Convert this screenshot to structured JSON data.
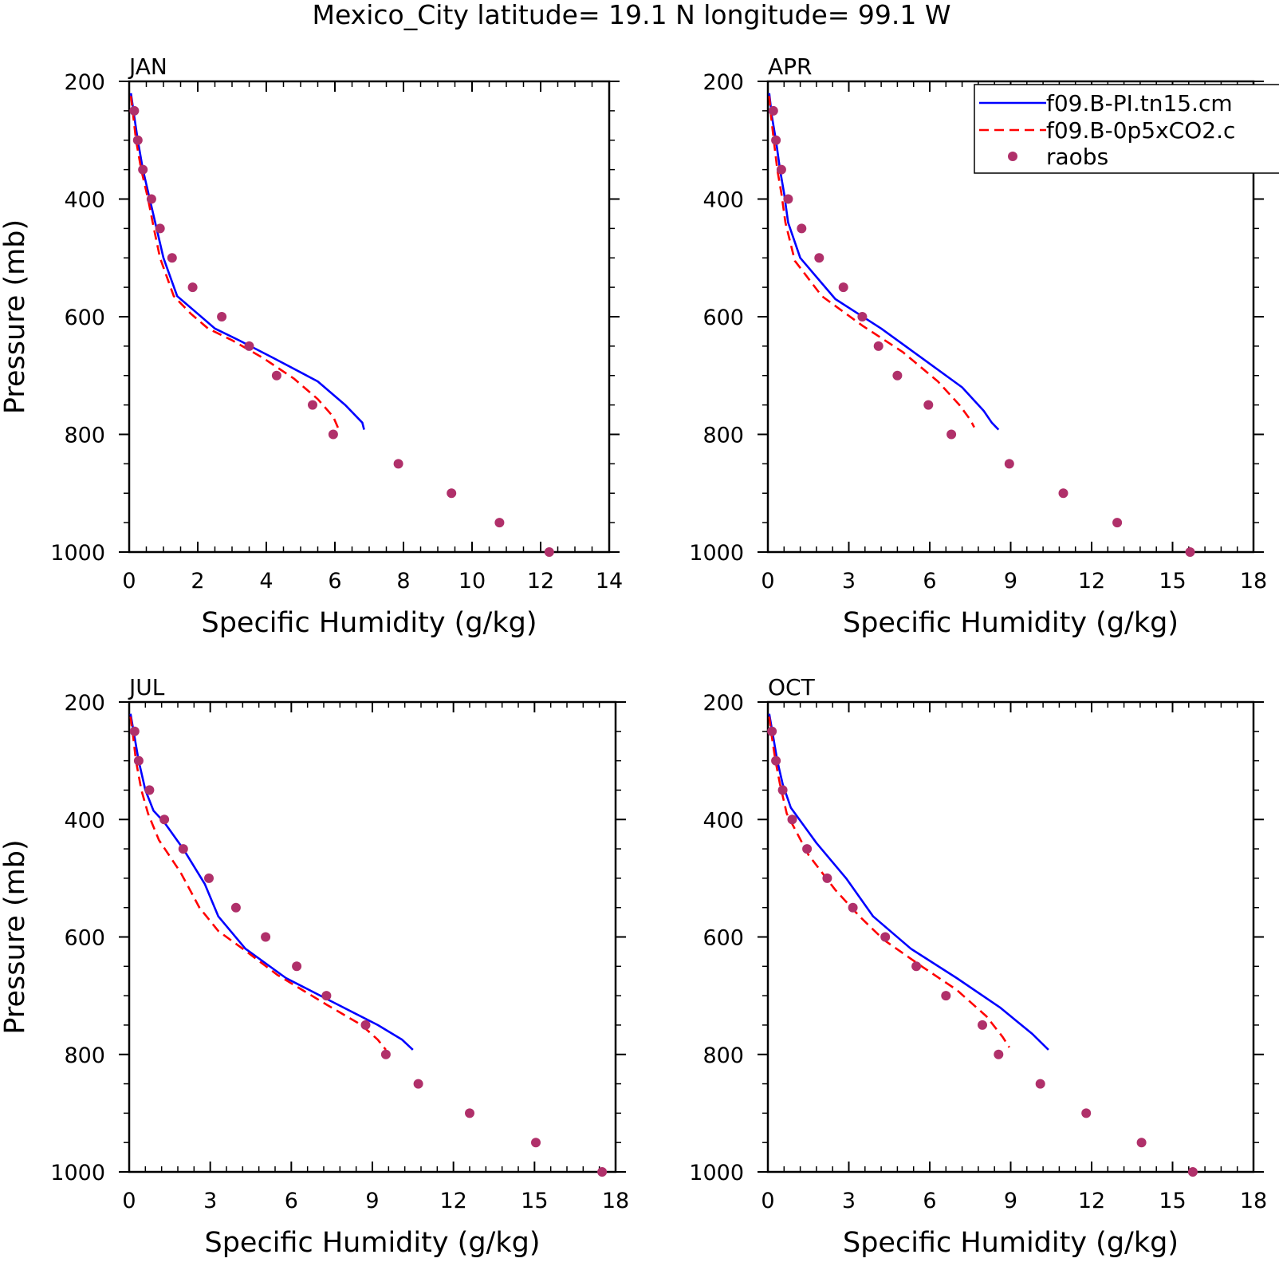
{
  "figure": {
    "title": "Mexico_City  latitude= 19.1 N longitude= 99.1 W",
    "legend_entries": [
      "f09.B-PI.tn15.cm",
      "f09.B-0p5xCO2.c",
      "raobs"
    ],
    "legend_full_names": [
      "f09.B-PI.tn15.cm",
      "f09.B-0p5xCO2.c",
      "raobs"
    ]
  },
  "colors": {
    "series_pi": "#0000ff",
    "series_co2": "#ff0000",
    "raobs": "#b0306a"
  },
  "chart_data": [
    {
      "type": "line",
      "panel": "JAN",
      "xlabel": "Specific Humidity (g/kg)",
      "ylabel": "Pressure (mb)",
      "xlim": [
        0,
        14
      ],
      "ylim": [
        200,
        1000
      ],
      "y_inverted": true,
      "xticks": [
        0,
        2,
        4,
        6,
        8,
        10,
        12,
        14
      ],
      "yticks": [
        200,
        400,
        600,
        800,
        1000
      ],
      "series": [
        {
          "name": "f09.B-PI.tn15.cm",
          "style": "solid",
          "points": [
            [
              0.05,
              220
            ],
            [
              0.15,
              260
            ],
            [
              0.25,
              300
            ],
            [
              0.4,
              350
            ],
            [
              0.6,
              400
            ],
            [
              0.8,
              450
            ],
            [
              1.0,
              500
            ],
            [
              1.4,
              565
            ],
            [
              2.0,
              595
            ],
            [
              2.5,
              620
            ],
            [
              3.2,
              640
            ],
            [
              4.2,
              670
            ],
            [
              5.5,
              710
            ],
            [
              6.3,
              750
            ],
            [
              6.8,
              780
            ],
            [
              6.85,
              792
            ]
          ]
        },
        {
          "name": "f09.B-0p5xCO2.c",
          "style": "dashed",
          "points": [
            [
              0.05,
              225
            ],
            [
              0.12,
              260
            ],
            [
              0.2,
              300
            ],
            [
              0.35,
              350
            ],
            [
              0.55,
              400
            ],
            [
              0.72,
              450
            ],
            [
              0.9,
              500
            ],
            [
              1.3,
              565
            ],
            [
              1.8,
              595
            ],
            [
              2.3,
              620
            ],
            [
              3.0,
              640
            ],
            [
              3.9,
              670
            ],
            [
              4.8,
              705
            ],
            [
              5.5,
              740
            ],
            [
              5.95,
              770
            ],
            [
              6.1,
              790
            ]
          ]
        }
      ],
      "raobs": [
        [
          0.15,
          250
        ],
        [
          0.25,
          300
        ],
        [
          0.4,
          350
        ],
        [
          0.65,
          400
        ],
        [
          0.9,
          450
        ],
        [
          1.25,
          500
        ],
        [
          1.85,
          550
        ],
        [
          2.7,
          600
        ],
        [
          3.5,
          650
        ],
        [
          4.3,
          700
        ],
        [
          5.35,
          750
        ],
        [
          5.95,
          800
        ],
        [
          7.85,
          850
        ],
        [
          9.4,
          900
        ],
        [
          10.8,
          950
        ],
        [
          12.25,
          1000
        ]
      ]
    },
    {
      "type": "line",
      "panel": "APR",
      "xlabel": "Specific Humidity (g/kg)",
      "ylabel": "",
      "xlim": [
        0,
        18
      ],
      "ylim": [
        200,
        1000
      ],
      "y_inverted": true,
      "xticks": [
        0,
        3,
        6,
        9,
        12,
        15,
        18
      ],
      "yticks": [
        200,
        400,
        600,
        800,
        1000
      ],
      "series": [
        {
          "name": "f09.B-PI.tn15.cm",
          "style": "solid",
          "points": [
            [
              0.05,
              220
            ],
            [
              0.15,
              260
            ],
            [
              0.3,
              300
            ],
            [
              0.45,
              350
            ],
            [
              0.6,
              390
            ],
            [
              0.75,
              440
            ],
            [
              1.2,
              500
            ],
            [
              2.5,
              570
            ],
            [
              4.2,
              620
            ],
            [
              5.7,
              670
            ],
            [
              7.2,
              720
            ],
            [
              8.0,
              760
            ],
            [
              8.3,
              780
            ],
            [
              8.55,
              792
            ]
          ]
        },
        {
          "name": "f09.B-0p5xCO2.c",
          "style": "dashed",
          "points": [
            [
              0.05,
              225
            ],
            [
              0.12,
              260
            ],
            [
              0.22,
              300
            ],
            [
              0.35,
              350
            ],
            [
              0.5,
              390
            ],
            [
              0.65,
              440
            ],
            [
              1.0,
              505
            ],
            [
              2.0,
              565
            ],
            [
              3.5,
              615
            ],
            [
              5.0,
              660
            ],
            [
              6.3,
              710
            ],
            [
              7.1,
              750
            ],
            [
              7.5,
              775
            ],
            [
              7.65,
              788
            ]
          ]
        }
      ],
      "raobs": [
        [
          0.2,
          250
        ],
        [
          0.3,
          300
        ],
        [
          0.5,
          350
        ],
        [
          0.75,
          400
        ],
        [
          1.25,
          450
        ],
        [
          1.9,
          500
        ],
        [
          2.8,
          550
        ],
        [
          3.5,
          600
        ],
        [
          4.1,
          650
        ],
        [
          4.8,
          700
        ],
        [
          5.95,
          750
        ],
        [
          6.8,
          800
        ],
        [
          8.95,
          850
        ],
        [
          10.95,
          900
        ],
        [
          12.95,
          950
        ],
        [
          15.65,
          1000
        ]
      ]
    },
    {
      "type": "line",
      "panel": "JUL",
      "xlabel": "Specific Humidity (g/kg)",
      "ylabel": "Pressure (mb)",
      "xlim": [
        0,
        18
      ],
      "ylim": [
        200,
        1000
      ],
      "y_inverted": true,
      "xticks": [
        0,
        3,
        6,
        9,
        12,
        15,
        18
      ],
      "yticks": [
        200,
        400,
        600,
        800,
        1000
      ],
      "series": [
        {
          "name": "f09.B-PI.tn15.cm",
          "style": "solid",
          "points": [
            [
              0.05,
              220
            ],
            [
              0.2,
              260
            ],
            [
              0.35,
              300
            ],
            [
              0.6,
              350
            ],
            [
              0.9,
              385
            ],
            [
              1.3,
              405
            ],
            [
              2.0,
              450
            ],
            [
              2.8,
              510
            ],
            [
              3.3,
              565
            ],
            [
              4.3,
              620
            ],
            [
              5.8,
              670
            ],
            [
              7.5,
              710
            ],
            [
              9.2,
              750
            ],
            [
              10.1,
              775
            ],
            [
              10.5,
              792
            ]
          ]
        },
        {
          "name": "f09.B-0p5xCO2.c",
          "style": "dashed",
          "points": [
            [
              0.05,
              225
            ],
            [
              0.15,
              260
            ],
            [
              0.25,
              300
            ],
            [
              0.45,
              350
            ],
            [
              0.7,
              390
            ],
            [
              1.1,
              435
            ],
            [
              1.9,
              490
            ],
            [
              2.6,
              550
            ],
            [
              3.3,
              590
            ],
            [
              4.2,
              620
            ],
            [
              5.5,
              665
            ],
            [
              7.3,
              715
            ],
            [
              8.6,
              750
            ],
            [
              9.2,
              775
            ],
            [
              9.5,
              792
            ]
          ]
        }
      ],
      "raobs": [
        [
          0.2,
          250
        ],
        [
          0.35,
          300
        ],
        [
          0.75,
          350
        ],
        [
          1.3,
          400
        ],
        [
          2.0,
          450
        ],
        [
          2.95,
          500
        ],
        [
          3.95,
          550
        ],
        [
          5.05,
          600
        ],
        [
          6.2,
          650
        ],
        [
          7.3,
          700
        ],
        [
          8.75,
          750
        ],
        [
          9.5,
          800
        ],
        [
          10.7,
          850
        ],
        [
          12.6,
          900
        ],
        [
          15.05,
          950
        ],
        [
          17.5,
          1000
        ]
      ]
    },
    {
      "type": "line",
      "panel": "OCT",
      "xlabel": "Specific Humidity (g/kg)",
      "ylabel": "",
      "xlim": [
        0,
        18
      ],
      "ylim": [
        200,
        1000
      ],
      "y_inverted": true,
      "xticks": [
        0,
        3,
        6,
        9,
        12,
        15,
        18
      ],
      "yticks": [
        200,
        400,
        600,
        800,
        1000
      ],
      "series": [
        {
          "name": "f09.B-PI.tn15.cm",
          "style": "solid",
          "points": [
            [
              0.05,
              220
            ],
            [
              0.2,
              260
            ],
            [
              0.35,
              300
            ],
            [
              0.55,
              340
            ],
            [
              0.85,
              380
            ],
            [
              1.8,
              440
            ],
            [
              2.9,
              500
            ],
            [
              3.9,
              565
            ],
            [
              5.3,
              620
            ],
            [
              7.0,
              670
            ],
            [
              8.6,
              720
            ],
            [
              9.8,
              765
            ],
            [
              10.4,
              792
            ]
          ]
        },
        {
          "name": "f09.B-0p5xCO2.c",
          "style": "dashed",
          "points": [
            [
              0.05,
              225
            ],
            [
              0.15,
              260
            ],
            [
              0.28,
              300
            ],
            [
              0.45,
              340
            ],
            [
              0.7,
              390
            ],
            [
              1.5,
              460
            ],
            [
              2.5,
              520
            ],
            [
              3.4,
              565
            ],
            [
              4.3,
              605
            ],
            [
              5.7,
              650
            ],
            [
              7.0,
              690
            ],
            [
              8.1,
              735
            ],
            [
              8.7,
              770
            ],
            [
              8.95,
              788
            ]
          ]
        }
      ],
      "raobs": [
        [
          0.15,
          250
        ],
        [
          0.3,
          300
        ],
        [
          0.55,
          350
        ],
        [
          0.9,
          400
        ],
        [
          1.45,
          450
        ],
        [
          2.2,
          500
        ],
        [
          3.15,
          550
        ],
        [
          4.35,
          600
        ],
        [
          5.5,
          650
        ],
        [
          6.6,
          700
        ],
        [
          7.95,
          750
        ],
        [
          8.55,
          800
        ],
        [
          10.1,
          850
        ],
        [
          11.8,
          900
        ],
        [
          13.85,
          950
        ],
        [
          15.75,
          1000
        ]
      ]
    }
  ]
}
